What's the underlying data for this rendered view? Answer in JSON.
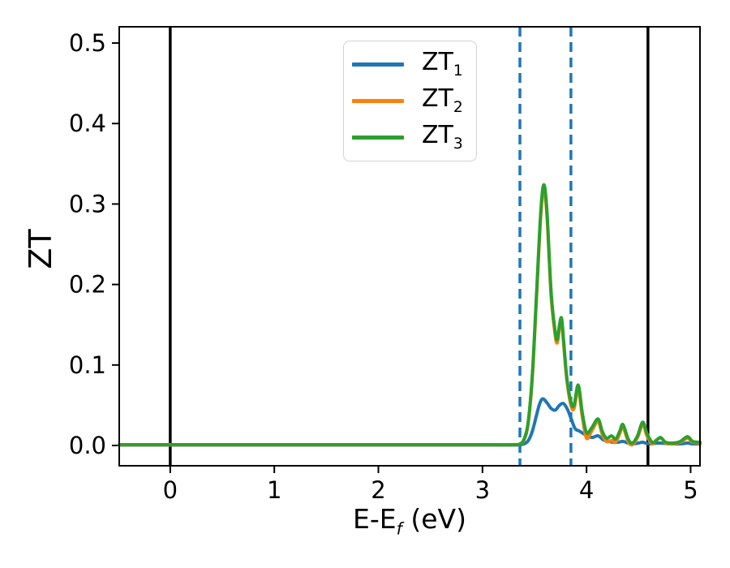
{
  "chart_data": {
    "type": "line",
    "title": "",
    "xlabel": "E-Ef (eV)",
    "xlabel_main": "E-E",
    "xlabel_sub": "f",
    "xlabel_rest": " (eV)",
    "ylabel": "ZT",
    "xlim": [
      -0.49,
      5.09
    ],
    "ylim": [
      -0.0252,
      0.5202
    ],
    "xticks": [
      0,
      1,
      2,
      3,
      4,
      5
    ],
    "yticks": [
      0.0,
      0.1,
      0.2,
      0.3,
      0.4,
      0.5
    ],
    "ytick_labels": [
      "0.0",
      "0.1",
      "0.2",
      "0.3",
      "0.4",
      "0.5"
    ],
    "grid": false,
    "legend_position": "upper center-left inside axes",
    "legend": [
      {
        "main": "ZT",
        "sub": "1",
        "color": "#1f77b4"
      },
      {
        "main": "ZT",
        "sub": "2",
        "color": "#ff7f0e"
      },
      {
        "main": "ZT",
        "sub": "3",
        "color": "#2ca02c"
      }
    ],
    "vlines_solid": {
      "color": "#000000",
      "width": 3.5,
      "x": [
        0.0,
        4.59
      ]
    },
    "vlines_dashed": {
      "color": "#1f77b4",
      "width": 3.5,
      "dash": [
        12,
        7
      ],
      "x": [
        3.36,
        3.85
      ]
    },
    "series": [
      {
        "name": "ZT1",
        "color": "#1f77b4",
        "points": [
          [
            -0.49,
            0.0005
          ],
          [
            1.0,
            0.0005
          ],
          [
            2.0,
            0.0005
          ],
          [
            3.0,
            0.0005
          ],
          [
            3.3,
            0.0005
          ],
          [
            3.36,
            0.001
          ],
          [
            3.4,
            0.002
          ],
          [
            3.44,
            0.006
          ],
          [
            3.48,
            0.018
          ],
          [
            3.52,
            0.038
          ],
          [
            3.55,
            0.052
          ],
          [
            3.58,
            0.058
          ],
          [
            3.62,
            0.053
          ],
          [
            3.66,
            0.046
          ],
          [
            3.7,
            0.044
          ],
          [
            3.74,
            0.05
          ],
          [
            3.78,
            0.052
          ],
          [
            3.82,
            0.044
          ],
          [
            3.85,
            0.034
          ],
          [
            3.89,
            0.021
          ],
          [
            3.93,
            0.018
          ],
          [
            3.98,
            0.014
          ],
          [
            4.05,
            0.01
          ],
          [
            4.11,
            0.012
          ],
          [
            4.16,
            0.007
          ],
          [
            4.19,
            0.006
          ],
          [
            4.25,
            0.004
          ],
          [
            4.3,
            0.004
          ],
          [
            4.35,
            0.005
          ],
          [
            4.4,
            0.003
          ],
          [
            4.44,
            0.002
          ],
          [
            4.5,
            0.003
          ],
          [
            4.54,
            0.004
          ],
          [
            4.6,
            0.002
          ],
          [
            4.7,
            0.003
          ],
          [
            4.8,
            0.002
          ],
          [
            4.9,
            0.002
          ],
          [
            4.97,
            0.003
          ],
          [
            5.02,
            0.002
          ],
          [
            5.09,
            0.002
          ]
        ]
      },
      {
        "name": "ZT2",
        "color": "#ff7f0e",
        "points": [
          [
            -0.49,
            0.0008
          ],
          [
            1.0,
            0.0008
          ],
          [
            2.0,
            0.0008
          ],
          [
            3.0,
            0.0008
          ],
          [
            3.3,
            0.0008
          ],
          [
            3.36,
            0.002
          ],
          [
            3.4,
            0.007
          ],
          [
            3.44,
            0.028
          ],
          [
            3.48,
            0.086
          ],
          [
            3.52,
            0.185
          ],
          [
            3.56,
            0.285
          ],
          [
            3.59,
            0.318
          ],
          [
            3.62,
            0.284
          ],
          [
            3.66,
            0.185
          ],
          [
            3.7,
            0.136
          ],
          [
            3.72,
            0.128
          ],
          [
            3.74,
            0.146
          ],
          [
            3.76,
            0.154
          ],
          [
            3.78,
            0.126
          ],
          [
            3.81,
            0.082
          ],
          [
            3.85,
            0.05
          ],
          [
            3.88,
            0.046
          ],
          [
            3.92,
            0.07
          ],
          [
            3.96,
            0.035
          ],
          [
            4.0,
            0.009
          ],
          [
            4.05,
            0.018
          ],
          [
            4.11,
            0.03
          ],
          [
            4.15,
            0.014
          ],
          [
            4.19,
            0.005
          ],
          [
            4.24,
            0.006
          ],
          [
            4.28,
            0.004
          ],
          [
            4.32,
            0.015
          ],
          [
            4.35,
            0.023
          ],
          [
            4.4,
            0.005
          ],
          [
            4.44,
            0.001
          ],
          [
            4.49,
            0.01
          ],
          [
            4.54,
            0.026
          ],
          [
            4.58,
            0.012
          ],
          [
            4.63,
            0.002
          ],
          [
            4.67,
            0.007
          ],
          [
            4.72,
            0.009
          ],
          [
            4.76,
            0.003
          ],
          [
            4.83,
            0.002
          ],
          [
            4.9,
            0.004
          ],
          [
            4.97,
            0.009
          ],
          [
            5.02,
            0.004
          ],
          [
            5.09,
            0.003
          ]
        ]
      },
      {
        "name": "ZT3",
        "color": "#2ca02c",
        "points": [
          [
            -0.49,
            0.001
          ],
          [
            1.0,
            0.001
          ],
          [
            2.0,
            0.001
          ],
          [
            3.0,
            0.001
          ],
          [
            3.3,
            0.001
          ],
          [
            3.36,
            0.002
          ],
          [
            3.4,
            0.008
          ],
          [
            3.44,
            0.03
          ],
          [
            3.48,
            0.09
          ],
          [
            3.52,
            0.19
          ],
          [
            3.56,
            0.29
          ],
          [
            3.59,
            0.324
          ],
          [
            3.62,
            0.29
          ],
          [
            3.66,
            0.19
          ],
          [
            3.7,
            0.14
          ],
          [
            3.72,
            0.132
          ],
          [
            3.74,
            0.15
          ],
          [
            3.76,
            0.158
          ],
          [
            3.78,
            0.13
          ],
          [
            3.81,
            0.085
          ],
          [
            3.85,
            0.054
          ],
          [
            3.88,
            0.05
          ],
          [
            3.92,
            0.075
          ],
          [
            3.96,
            0.04
          ],
          [
            4.0,
            0.016
          ],
          [
            4.05,
            0.022
          ],
          [
            4.11,
            0.033
          ],
          [
            4.15,
            0.018
          ],
          [
            4.19,
            0.009
          ],
          [
            4.24,
            0.012
          ],
          [
            4.28,
            0.008
          ],
          [
            4.32,
            0.018
          ],
          [
            4.35,
            0.026
          ],
          [
            4.4,
            0.008
          ],
          [
            4.44,
            0.003
          ],
          [
            4.49,
            0.012
          ],
          [
            4.54,
            0.029
          ],
          [
            4.58,
            0.015
          ],
          [
            4.63,
            0.004
          ],
          [
            4.67,
            0.006
          ],
          [
            4.71,
            0.01
          ],
          [
            4.76,
            0.004
          ],
          [
            4.83,
            0.003
          ],
          [
            4.9,
            0.005
          ],
          [
            4.97,
            0.011
          ],
          [
            5.02,
            0.005
          ],
          [
            5.09,
            0.004
          ]
        ]
      }
    ]
  }
}
